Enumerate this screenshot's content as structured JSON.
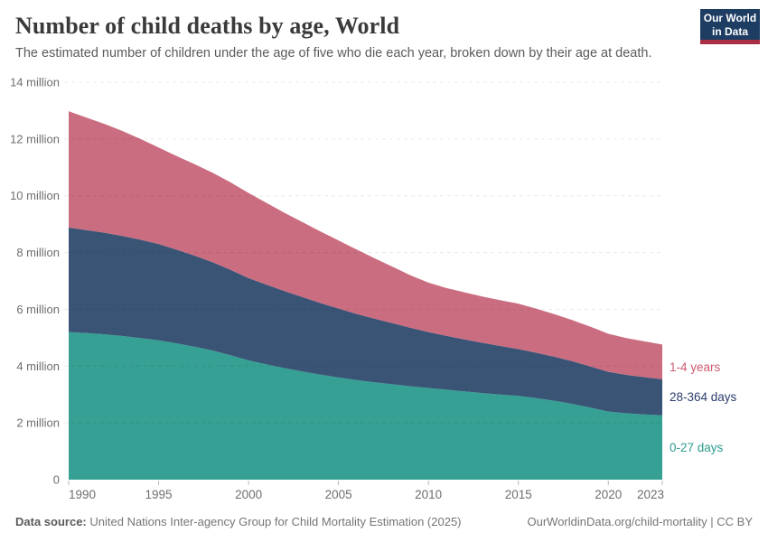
{
  "header": {
    "title": "Number of child deaths by age, World",
    "subtitle": "The estimated number of children under the age of five who die each year, broken down by their age at death.",
    "logo": {
      "line1": "Our World",
      "line2": "in Data",
      "bg_color": "#1d3d63",
      "accent_color": "#a92e43"
    }
  },
  "chart_data": {
    "type": "area",
    "stacked": true,
    "grid": "dashed horizontal",
    "legend_position": "right-edge-labels",
    "unit": "million deaths per year",
    "ylim": [
      0,
      14
    ],
    "x": [
      1990,
      1991,
      1992,
      1993,
      1994,
      1995,
      1996,
      1997,
      1998,
      1999,
      2000,
      2001,
      2002,
      2003,
      2004,
      2005,
      2006,
      2007,
      2008,
      2009,
      2010,
      2011,
      2012,
      2013,
      2014,
      2015,
      2016,
      2017,
      2018,
      2019,
      2020,
      2021,
      2022,
      2023
    ],
    "series": [
      {
        "name": "0-27 days",
        "color": "#35A093",
        "label_color": "#2B9C8E",
        "label_dy": 0,
        "values": [
          5.2,
          5.16,
          5.12,
          5.06,
          4.99,
          4.91,
          4.8,
          4.68,
          4.55,
          4.38,
          4.2,
          4.06,
          3.93,
          3.81,
          3.7,
          3.6,
          3.51,
          3.43,
          3.36,
          3.29,
          3.23,
          3.17,
          3.11,
          3.05,
          3.0,
          2.95,
          2.87,
          2.78,
          2.67,
          2.54,
          2.4,
          2.34,
          2.3,
          2.27
        ]
      },
      {
        "name": "28-364 days",
        "color": "#3A5476",
        "label_color": "#2D3E6F",
        "label_dy": 0,
        "values": [
          3.68,
          3.63,
          3.58,
          3.52,
          3.46,
          3.39,
          3.3,
          3.21,
          3.11,
          3.01,
          2.9,
          2.81,
          2.71,
          2.62,
          2.52,
          2.43,
          2.33,
          2.24,
          2.15,
          2.06,
          1.97,
          1.9,
          1.83,
          1.77,
          1.71,
          1.65,
          1.6,
          1.55,
          1.5,
          1.45,
          1.4,
          1.35,
          1.31,
          1.27
        ]
      },
      {
        "name": "1-4 years",
        "color": "#CB6D80",
        "label_color": "#CE5A6F",
        "label_dy": 6,
        "values": [
          4.1,
          3.96,
          3.83,
          3.7,
          3.55,
          3.4,
          3.3,
          3.22,
          3.15,
          3.08,
          3.0,
          2.88,
          2.76,
          2.64,
          2.52,
          2.4,
          2.27,
          2.13,
          1.99,
          1.85,
          1.74,
          1.68,
          1.66,
          1.63,
          1.61,
          1.6,
          1.55,
          1.5,
          1.45,
          1.4,
          1.34,
          1.3,
          1.26,
          1.22
        ]
      }
    ],
    "yticks": [
      {
        "value": 0,
        "label": "0"
      },
      {
        "value": 2,
        "label": "2 million"
      },
      {
        "value": 4,
        "label": "4 million"
      },
      {
        "value": 6,
        "label": "6 million"
      },
      {
        "value": 8,
        "label": "8 million"
      },
      {
        "value": 10,
        "label": "10 million"
      },
      {
        "value": 12,
        "label": "12 million"
      },
      {
        "value": 14,
        "label": "14 million"
      }
    ],
    "xticks": [
      1990,
      1995,
      2000,
      2005,
      2010,
      2015,
      2020,
      2023
    ]
  },
  "footer": {
    "source_label": "Data source:",
    "source_text": "United Nations Inter-agency Group for Child Mortality Estimation (2025)",
    "right_text": "OurWorldinData.org/child-mortality | CC BY"
  }
}
